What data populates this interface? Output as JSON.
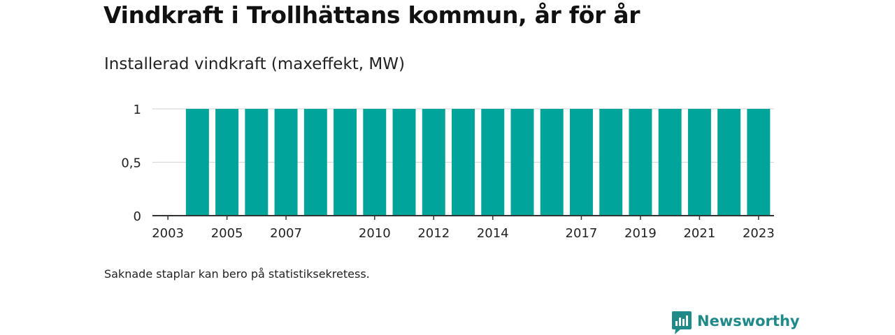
{
  "header": {
    "title": "Vindkraft i Trollhättans kommun, år för år",
    "subtitle": "Installerad vindkraft (maxeffekt, MW)"
  },
  "footer": {
    "note": "Saknade staplar kan bero på statistiksekretess.",
    "brand": "Newsworthy"
  },
  "colors": {
    "bar": "#00a49a",
    "grid": "#d9d9d9",
    "axis": "#333333",
    "brand": "#1f8a88"
  },
  "chart_data": {
    "type": "bar",
    "title": "Vindkraft i Trollhättans kommun, år för år",
    "ylabel": "Installerad vindkraft (maxeffekt, MW)",
    "categories": [
      "2003",
      "2004",
      "2005",
      "2006",
      "2007",
      "2008",
      "2009",
      "2010",
      "2011",
      "2012",
      "2013",
      "2014",
      "2015",
      "2016",
      "2017",
      "2018",
      "2019",
      "2020",
      "2021",
      "2022",
      "2023"
    ],
    "values": [
      null,
      1,
      1,
      1,
      1,
      1,
      1,
      1,
      1,
      1,
      1,
      1,
      1,
      1,
      1,
      1,
      1,
      1,
      1,
      1,
      1
    ],
    "x_tick_labels": [
      "2003",
      "2005",
      "2007",
      "2010",
      "2012",
      "2014",
      "2017",
      "2019",
      "2021",
      "2023"
    ],
    "y_ticks": [
      0,
      0.5,
      1
    ],
    "y_tick_labels": [
      "0",
      "0,5",
      "1"
    ],
    "ylim": [
      0,
      1
    ],
    "grid": true,
    "legend": "none"
  }
}
